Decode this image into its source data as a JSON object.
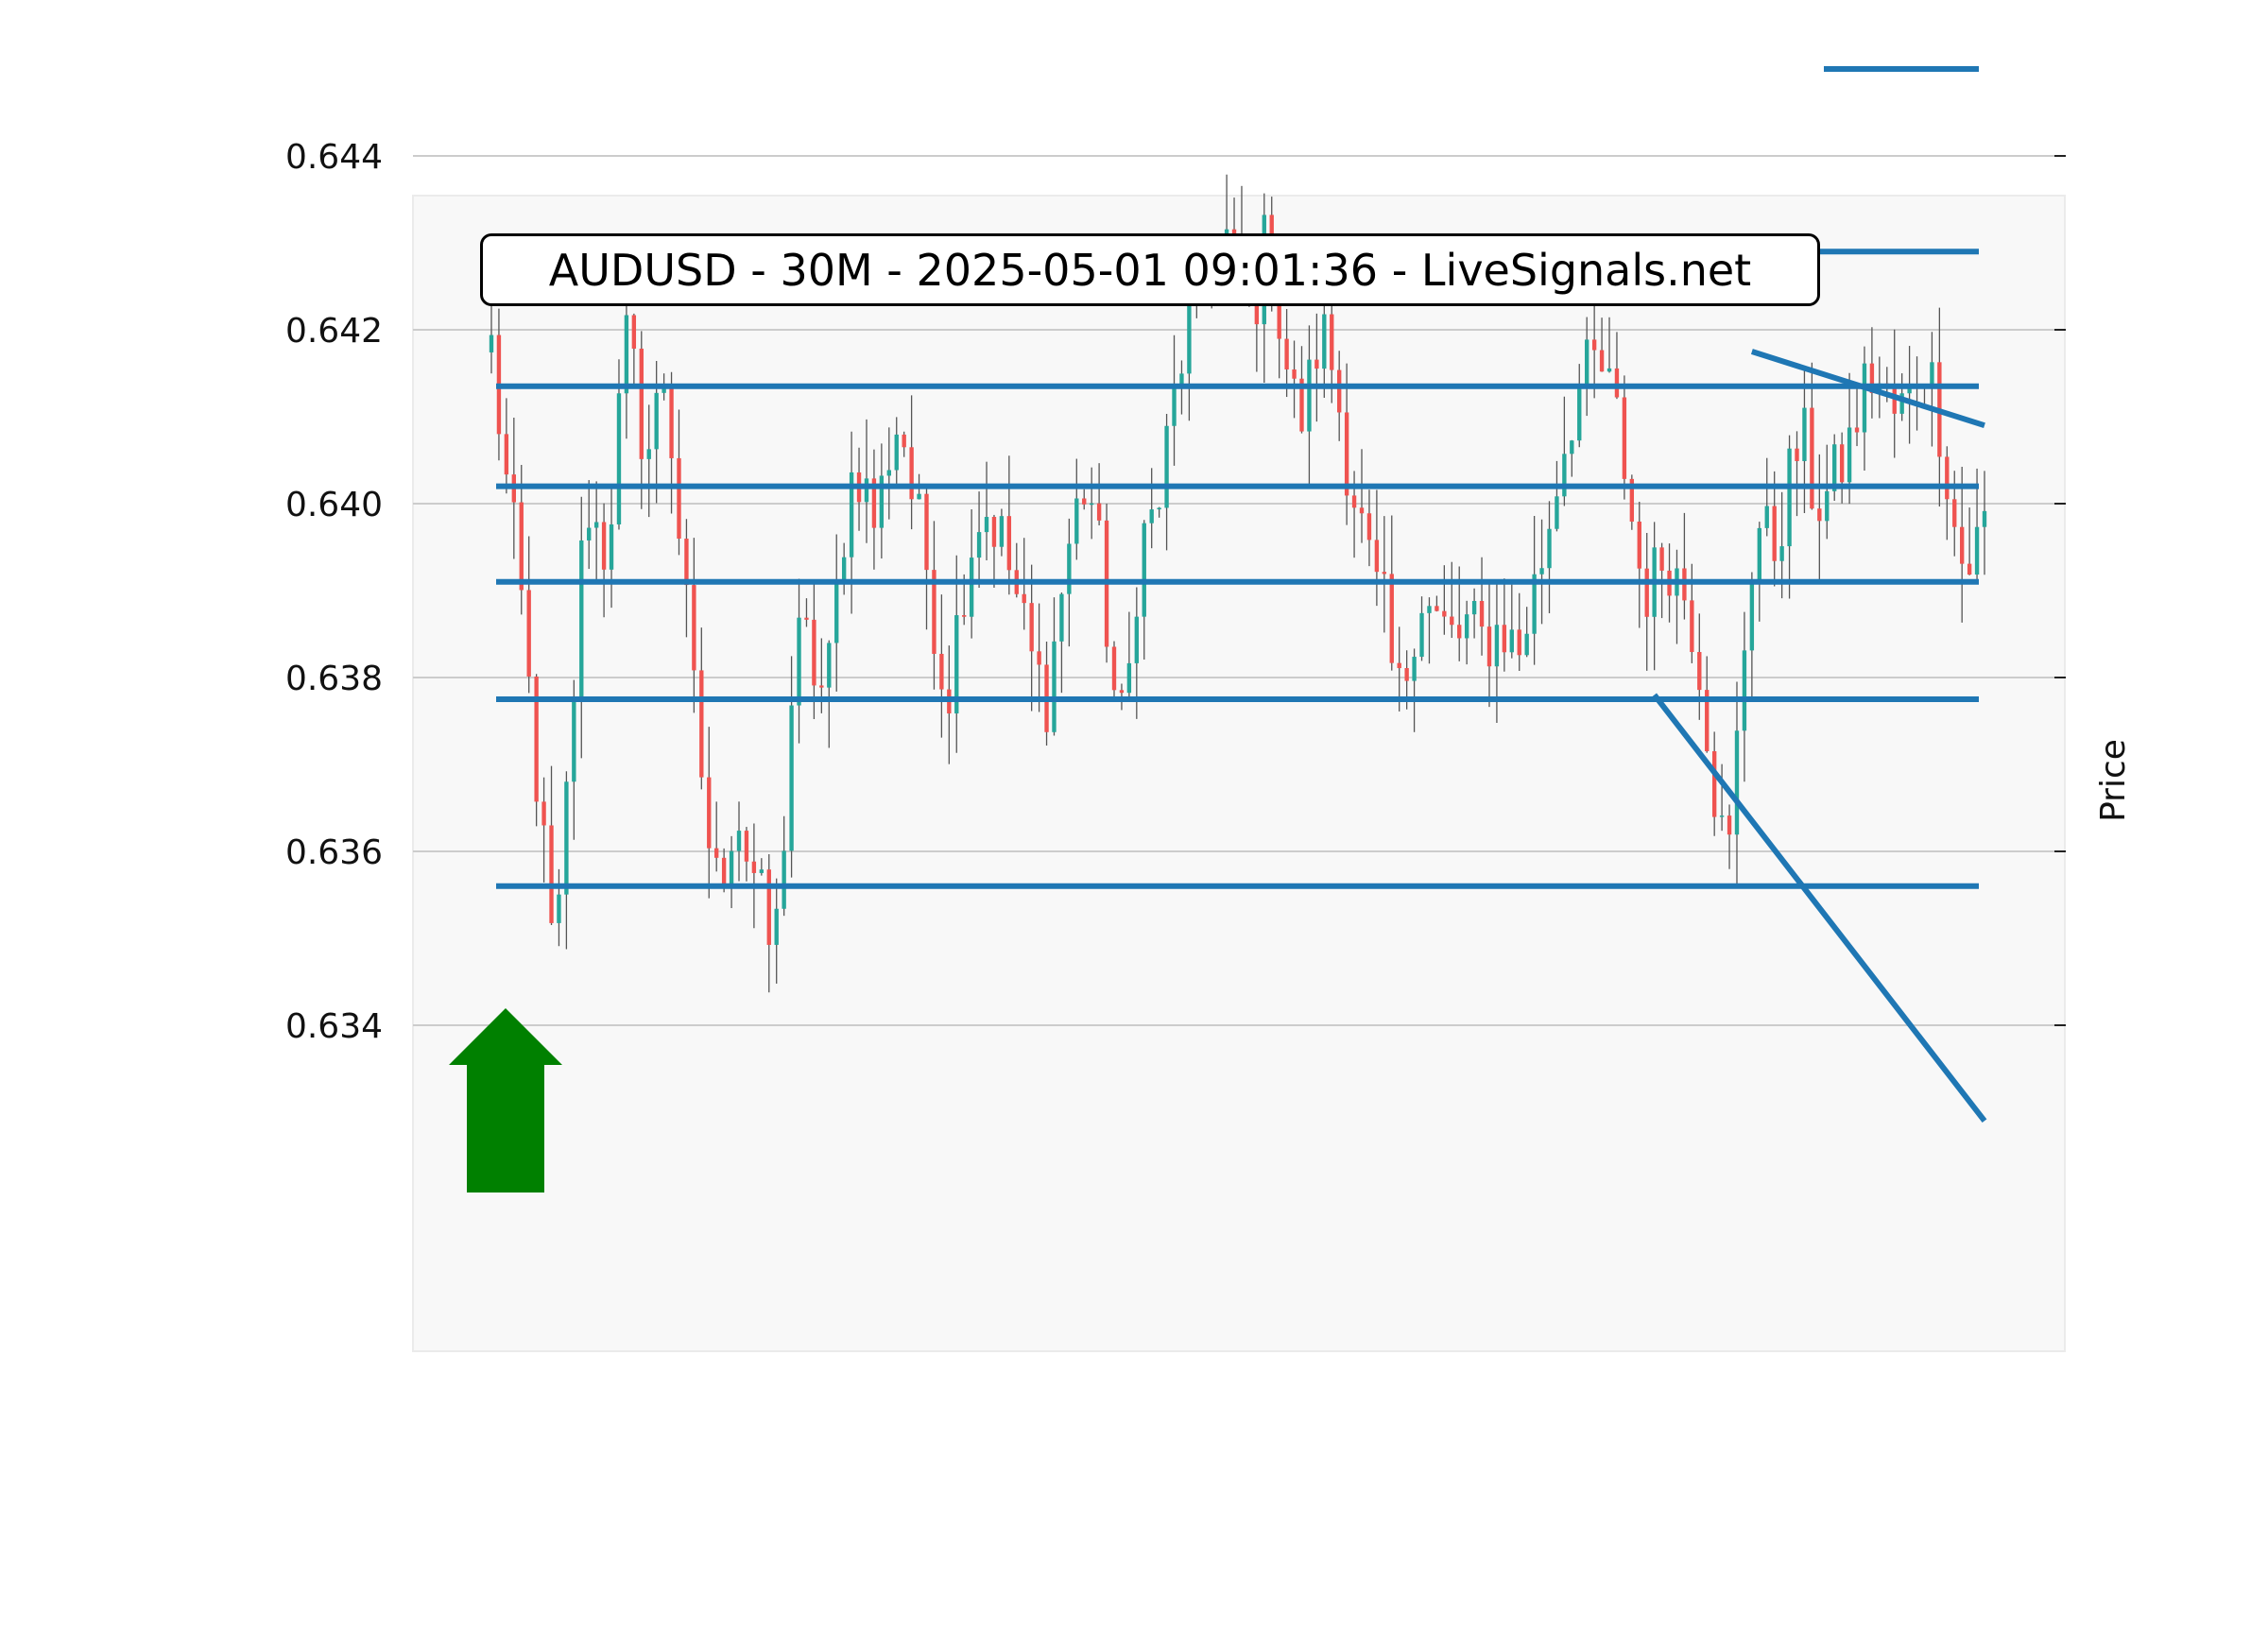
{
  "chart_data": {
    "type": "candlestick",
    "title": "AUDUSD - 30M - 2025-05-01 09:01:36 - LiveSignals.net",
    "symbol": "AUDUSD",
    "timeframe": "30M",
    "timestamp": "2025-05-01 09:01:36",
    "source_label": "LiveSignals.net",
    "xlabel": "",
    "ylabel": "Price",
    "ylim": [
      0.6328,
      0.6454
    ],
    "yticks": [
      0.634,
      0.636,
      0.638,
      0.64,
      0.642,
      0.644
    ],
    "ytick_labels": [
      "0.634",
      "0.636",
      "0.638",
      "0.640",
      "0.642",
      "0.644"
    ],
    "grid": "horizontal",
    "candle_count": 200,
    "close_path": [
      0.6418,
      0.6408,
      0.6399,
      0.6392,
      0.638,
      0.6368,
      0.6357,
      0.6345,
      0.6362,
      0.6378,
      0.6395,
      0.6402,
      0.6393,
      0.6398,
      0.641,
      0.642,
      0.6412,
      0.6405,
      0.641,
      0.6415,
      0.6405,
      0.6392,
      0.638,
      0.637,
      0.636,
      0.6355,
      0.6362,
      0.6365,
      0.636,
      0.6357,
      0.6352,
      0.6347,
      0.636,
      0.6378,
      0.6385,
      0.6383,
      0.6378,
      0.638,
      0.639,
      0.64,
      0.6405,
      0.6402,
      0.6398,
      0.6402,
      0.6408,
      0.641,
      0.6402,
      0.6397,
      0.6392,
      0.6384,
      0.6377,
      0.6385,
      0.6392,
      0.6397,
      0.64,
      0.6398,
      0.6396,
      0.6392,
      0.6388,
      0.6383,
      0.638,
      0.6378,
      0.6385,
      0.6393,
      0.6398,
      0.6402,
      0.64,
      0.6392,
      0.6382,
      0.6373,
      0.638,
      0.6393,
      0.6398,
      0.6398,
      0.6405,
      0.6412,
      0.6418,
      0.6422,
      0.6425,
      0.6428,
      0.643,
      0.643,
      0.6426,
      0.6422,
      0.6424,
      0.643,
      0.6425,
      0.6418,
      0.6412,
      0.641,
      0.6414,
      0.642,
      0.6418,
      0.6412,
      0.6405,
      0.64,
      0.6395,
      0.639,
      0.6388,
      0.638,
      0.6377,
      0.6385,
      0.639,
      0.6388,
      0.6386,
      0.6385,
      0.6384,
      0.6386,
      0.6385,
      0.6384,
      0.6385,
      0.6386,
      0.6384,
      0.6383,
      0.6388,
      0.6392,
      0.6397,
      0.6403,
      0.6408,
      0.6412,
      0.6414,
      0.6416,
      0.6415,
      0.6412,
      0.6408,
      0.64,
      0.6393,
      0.639,
      0.6392,
      0.6395,
      0.6392,
      0.639,
      0.6386,
      0.638,
      0.637,
      0.6362,
      0.636,
      0.6375,
      0.639,
      0.6398,
      0.6396,
      0.6395,
      0.64,
      0.6405,
      0.6408,
      0.6402,
      0.64,
      0.6401,
      0.6404,
      0.6406,
      0.641,
      0.6414,
      0.6415,
      0.6412,
      0.641,
      0.6411,
      0.6412,
      0.6418,
      0.6415,
      0.641,
      0.6403,
      0.6395,
      0.6392,
      0.6395,
      0.6398
    ],
    "horizontal_levels": [
      0.645,
      0.6429,
      0.64135,
      0.6402,
      0.6391,
      0.63775,
      0.6356
    ],
    "trendlines": [
      {
        "from": {
          "candle": 155,
          "price": 0.6378
        },
        "to": {
          "candle": 199,
          "price": 0.6329
        }
      },
      {
        "from": {
          "candle": 168,
          "price": 0.64175
        },
        "to": {
          "candle": 199,
          "price": 0.6409
        }
      }
    ],
    "signal": {
      "direction": "up",
      "color": "#008000"
    },
    "colors": {
      "up": "#26a69a",
      "down": "#ef5350",
      "wick": "#555555",
      "level": "#1f77b4",
      "grid": "#cccccc",
      "plot_bg": "#f8f8f8",
      "signal": "#008000"
    }
  }
}
